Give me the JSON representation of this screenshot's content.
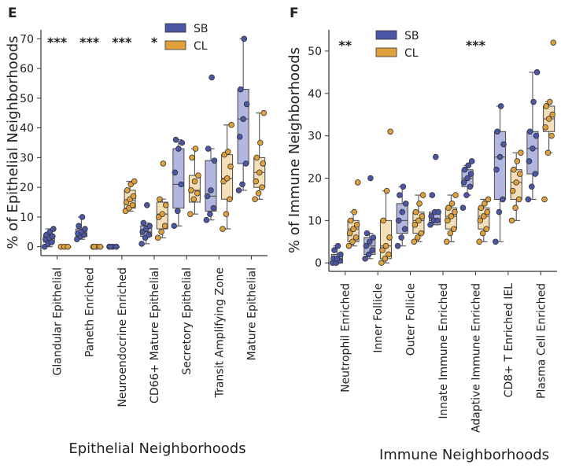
{
  "chart_data": [
    {
      "panel": "E",
      "type": "box",
      "ylabel": "% of Epithelial Neighborhoods",
      "xlabel": "Epithelial Neighborhoods",
      "ylim": [
        -3,
        73
      ],
      "yticks": [
        0,
        10,
        20,
        30,
        40,
        50,
        60,
        70
      ],
      "categories": [
        "Glandular Epithelial",
        "Paneth Enriched",
        "Neuroendocrine Enriched",
        "CD66+ Mature Epithelial",
        "Secretory Epithelial",
        "Transit Amplifying Zone",
        "Mature Epithelial"
      ],
      "significance": [
        "***",
        "***",
        "***",
        "*",
        "",
        "",
        ""
      ],
      "legend": {
        "position": "top",
        "entries": [
          "SB",
          "CL"
        ]
      },
      "colors": {
        "SB": "#4b57a6",
        "SB_box": "#b3b6e0",
        "CL": "#e0a03c",
        "CL_box": "#f5dfb8"
      },
      "series": [
        {
          "name": "SB",
          "boxes": [
            {
              "q1": 1.5,
              "median": 3,
              "q3": 4,
              "whislo": 0,
              "whishi": 6,
              "points": [
                0,
                1,
                1.5,
                2.5,
                3,
                3.5,
                4,
                5,
                6
              ]
            },
            {
              "q1": 3.5,
              "median": 4.5,
              "q3": 6,
              "whislo": 2.5,
              "whishi": 10,
              "points": [
                2.5,
                3.5,
                4,
                4.5,
                5,
                6,
                7,
                10
              ]
            },
            {
              "q1": 0,
              "median": 0,
              "q3": 0,
              "whislo": 0,
              "whishi": 0,
              "points": [
                0,
                0,
                0,
                0
              ]
            },
            {
              "q1": 3.5,
              "median": 5,
              "q3": 7,
              "whislo": 1,
              "whishi": 8,
              "points": [
                1,
                3,
                4,
                5,
                6,
                7,
                8,
                14
              ]
            },
            {
              "q1": 13,
              "median": 21,
              "q3": 33,
              "whislo": 7,
              "whishi": 36,
              "points": [
                7,
                12,
                21,
                25,
                33,
                35,
                36
              ]
            },
            {
              "q1": 12,
              "median": 17,
              "q3": 29,
              "whislo": 9,
              "whishi": 33,
              "points": [
                9,
                11,
                13,
                17,
                19,
                29,
                33,
                57
              ]
            },
            {
              "q1": 28,
              "median": 43,
              "q3": 53,
              "whislo": 19,
              "whishi": 70,
              "points": [
                19,
                21,
                28,
                37,
                43,
                48,
                53,
                70
              ]
            }
          ]
        },
        {
          "name": "CL",
          "boxes": [
            {
              "q1": 0,
              "median": 0,
              "q3": 0,
              "whislo": 0,
              "whishi": 0,
              "points": [
                0,
                0,
                0
              ]
            },
            {
              "q1": 0,
              "median": 0,
              "q3": 0,
              "whislo": 0,
              "whishi": 0,
              "points": [
                0,
                0,
                0,
                0
              ]
            },
            {
              "q1": 13,
              "median": 15.5,
              "q3": 19,
              "whislo": 12,
              "whishi": 22,
              "points": [
                12,
                13,
                14,
                15,
                16,
                17,
                19,
                21,
                22
              ]
            },
            {
              "q1": 6,
              "median": 11,
              "q3": 15,
              "whislo": 3,
              "whishi": 16,
              "points": [
                3,
                5,
                7,
                10,
                11,
                14,
                16,
                28
              ]
            },
            {
              "q1": 15,
              "median": 19,
              "q3": 24,
              "whislo": 11,
              "whishi": 33,
              "points": [
                11,
                16,
                18,
                19,
                22,
                24,
                30,
                33
              ]
            },
            {
              "q1": 16,
              "median": 23,
              "q3": 31,
              "whislo": 6,
              "whishi": 41,
              "points": [
                6,
                11,
                16,
                22,
                23,
                27,
                31,
                32,
                41
              ]
            },
            {
              "q1": 20,
              "median": 25,
              "q3": 30,
              "whislo": 16,
              "whishi": 45,
              "points": [
                16,
                18,
                20,
                22,
                25,
                28,
                30,
                35,
                45
              ]
            }
          ]
        }
      ]
    },
    {
      "panel": "F",
      "type": "box",
      "ylabel": "% of Immune Neighborhoods",
      "xlabel": "Immune Neighborhoods",
      "ylim": [
        -2,
        55
      ],
      "yticks": [
        0,
        10,
        20,
        30,
        40,
        50
      ],
      "categories": [
        "Neutrophil Enriched",
        "Inner Follicle",
        "Outer Follicle",
        "Innate Immune Enriched",
        "Adaptive Immune Enriched",
        "CD8+ T Enriched IEL",
        "Plasma Cell Enriched"
      ],
      "significance": [
        "**",
        "",
        "",
        "",
        "***",
        "",
        ""
      ],
      "legend": {
        "position": "top",
        "entries": [
          "SB",
          "CL"
        ]
      },
      "colors": {
        "SB": "#4b57a6",
        "SB_box": "#b3b6e0",
        "CL": "#e0a03c",
        "CL_box": "#f5dfb8"
      },
      "series": [
        {
          "name": "SB",
          "boxes": [
            {
              "q1": 0,
              "median": 1,
              "q3": 2,
              "whislo": 0,
              "whishi": 4,
              "points": [
                0,
                0,
                0.5,
                1,
                1,
                2,
                3,
                4
              ]
            },
            {
              "q1": 2,
              "median": 4,
              "q3": 6,
              "whislo": 1,
              "whishi": 7,
              "points": [
                1,
                2,
                3,
                4,
                5,
                6,
                7,
                20
              ]
            },
            {
              "q1": 7,
              "median": 10,
              "q3": 14,
              "whislo": 4,
              "whishi": 18,
              "points": [
                4,
                6,
                8,
                10,
                12,
                14,
                16,
                18
              ]
            },
            {
              "q1": 9,
              "median": 10,
              "q3": 12,
              "whislo": 9,
              "whishi": 12,
              "points": [
                9,
                10,
                10,
                11,
                12,
                12,
                16,
                25
              ]
            },
            {
              "q1": 18,
              "median": 20,
              "q3": 22,
              "whislo": 16,
              "whishi": 23,
              "points": [
                13,
                16,
                18,
                19,
                20,
                21,
                22,
                23,
                24
              ]
            },
            {
              "q1": 15,
              "median": 25,
              "q3": 31,
              "whislo": 5,
              "whishi": 37,
              "points": [
                5,
                12,
                15,
                22,
                25,
                28,
                31,
                37
              ]
            },
            {
              "q1": 21,
              "median": 27,
              "q3": 31,
              "whislo": 15,
              "whishi": 45,
              "points": [
                15,
                18,
                21,
                24,
                27,
                30,
                31,
                38,
                45
              ]
            }
          ]
        },
        {
          "name": "CL",
          "boxes": [
            {
              "q1": 5,
              "median": 8,
              "q3": 10,
              "whislo": 4,
              "whishi": 12,
              "points": [
                4,
                5,
                6,
                7,
                8,
                9,
                10,
                12,
                19
              ]
            },
            {
              "q1": 1,
              "median": 4,
              "q3": 10,
              "whislo": 0,
              "whishi": 17,
              "points": [
                0,
                1,
                2,
                3,
                4,
                6,
                10,
                17,
                31
              ]
            },
            {
              "q1": 7,
              "median": 10,
              "q3": 12,
              "whislo": 5,
              "whishi": 16,
              "points": [
                5,
                6,
                7,
                9,
                10,
                11,
                12,
                14,
                16
              ]
            },
            {
              "q1": 8,
              "median": 11,
              "q3": 13,
              "whislo": 5,
              "whishi": 16,
              "points": [
                5,
                7,
                8,
                10,
                11,
                12,
                13,
                14,
                16
              ]
            },
            {
              "q1": 8,
              "median": 11,
              "q3": 13,
              "whislo": 5,
              "whishi": 15,
              "points": [
                5,
                7,
                8,
                10,
                11,
                12,
                13,
                14,
                15
              ]
            },
            {
              "q1": 15,
              "median": 19,
              "q3": 22,
              "whislo": 10,
              "whishi": 26,
              "points": [
                10,
                13,
                15,
                17,
                19,
                21,
                22,
                24,
                26
              ]
            },
            {
              "q1": 31,
              "median": 34,
              "q3": 37,
              "whislo": 26,
              "whishi": 38,
              "points": [
                15,
                26,
                30,
                32,
                34,
                35,
                37,
                38,
                52
              ]
            }
          ]
        }
      ]
    }
  ]
}
